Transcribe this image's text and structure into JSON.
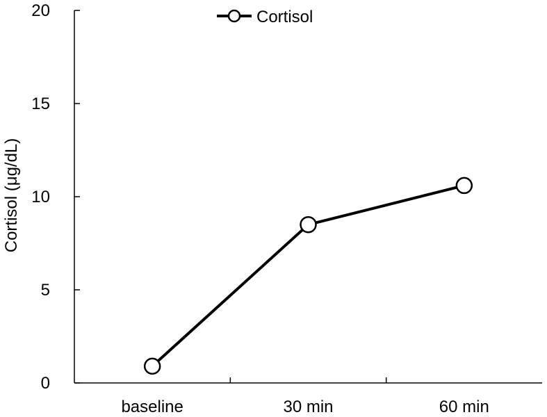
{
  "chart_data": {
    "type": "line",
    "categories": [
      "baseline",
      "30 min",
      "60 min"
    ],
    "series": [
      {
        "name": "Cortisol",
        "values": [
          0.9,
          8.5,
          10.6
        ],
        "color": "#000000",
        "marker": "open-circle"
      }
    ],
    "ylabel": "Cortisol (μg/dL)",
    "ylim": [
      0,
      20
    ],
    "yticks": [
      0,
      5,
      10,
      15,
      20
    ],
    "grid": false,
    "legend": {
      "position": "top-center",
      "entries": [
        "Cortisol"
      ]
    }
  }
}
